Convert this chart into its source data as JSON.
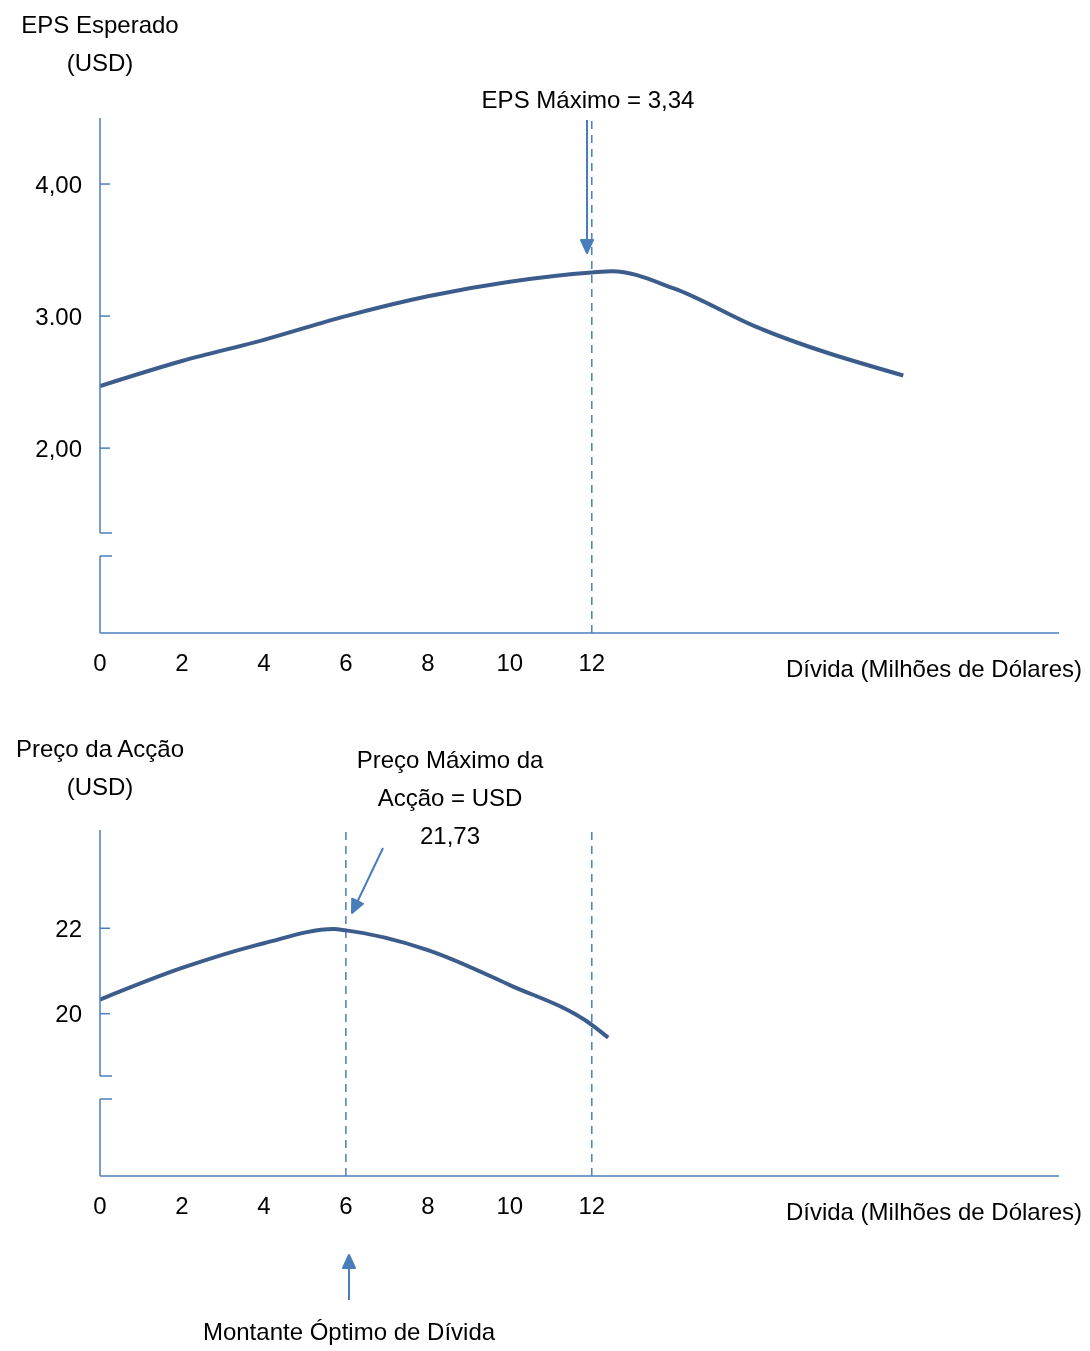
{
  "chart_data": [
    {
      "type": "line",
      "ylabel": "EPS Esperado (USD)",
      "xlabel": "Dívida (Milhões de Dólares)",
      "x": [
        0,
        2,
        4,
        6,
        8,
        10,
        12,
        12.5,
        14,
        16,
        19.6
      ],
      "series": [
        {
          "color": "#3c5d8c",
          "values": [
            2.47,
            2.66,
            2.82,
            3.0,
            3.15,
            3.26,
            3.33,
            3.34,
            3.21,
            2.92,
            2.55
          ]
        }
      ],
      "xlim": [
        0,
        23.4
      ],
      "xticks": [
        0,
        2,
        4,
        6,
        8,
        10,
        12
      ],
      "ylim": [
        0.6,
        4.5
      ],
      "yticks": [
        {
          "value": 2,
          "label": "2,00"
        },
        {
          "value": 3,
          "label": "3.00"
        },
        {
          "value": 4,
          "label": "4,00"
        }
      ],
      "ref_lines": [
        {
          "axis": "x",
          "value": 12,
          "color": "#4a7ebb",
          "line_style": "dashed"
        }
      ],
      "annotations": [
        "EPS Máximo = 3,34"
      ],
      "line_style": "solid",
      "marker": "none"
    },
    {
      "type": "line",
      "ylabel": "Preço da Acção (USD)",
      "xlabel": "Dívida (Milhões de Dólares)",
      "x": [
        0,
        2,
        4,
        5.7,
        6,
        8,
        10,
        12,
        12.4
      ],
      "series": [
        {
          "color": "#3c5d8c",
          "values": [
            20.33,
            21.07,
            21.65,
            21.98,
            21.95,
            21.49,
            20.67,
            19.74,
            19.44
          ]
        }
      ],
      "xlim": [
        0,
        23.4
      ],
      "xticks": [
        0,
        2,
        4,
        6,
        8,
        10,
        12
      ],
      "ylim": [
        16.2,
        24.3
      ],
      "yticks": [
        20,
        22
      ],
      "ref_lines": [
        {
          "axis": "x",
          "value": 6,
          "color": "#4a7ebb",
          "line_style": "dashed"
        },
        {
          "axis": "x",
          "value": 12,
          "color": "#4a7ebb",
          "line_style": "dashed"
        }
      ],
      "annotations": [
        "Preço Máximo da Acção = USD 21,73",
        "Montante Óptimo de Dívida"
      ],
      "line_style": "solid",
      "marker": "none"
    }
  ]
}
